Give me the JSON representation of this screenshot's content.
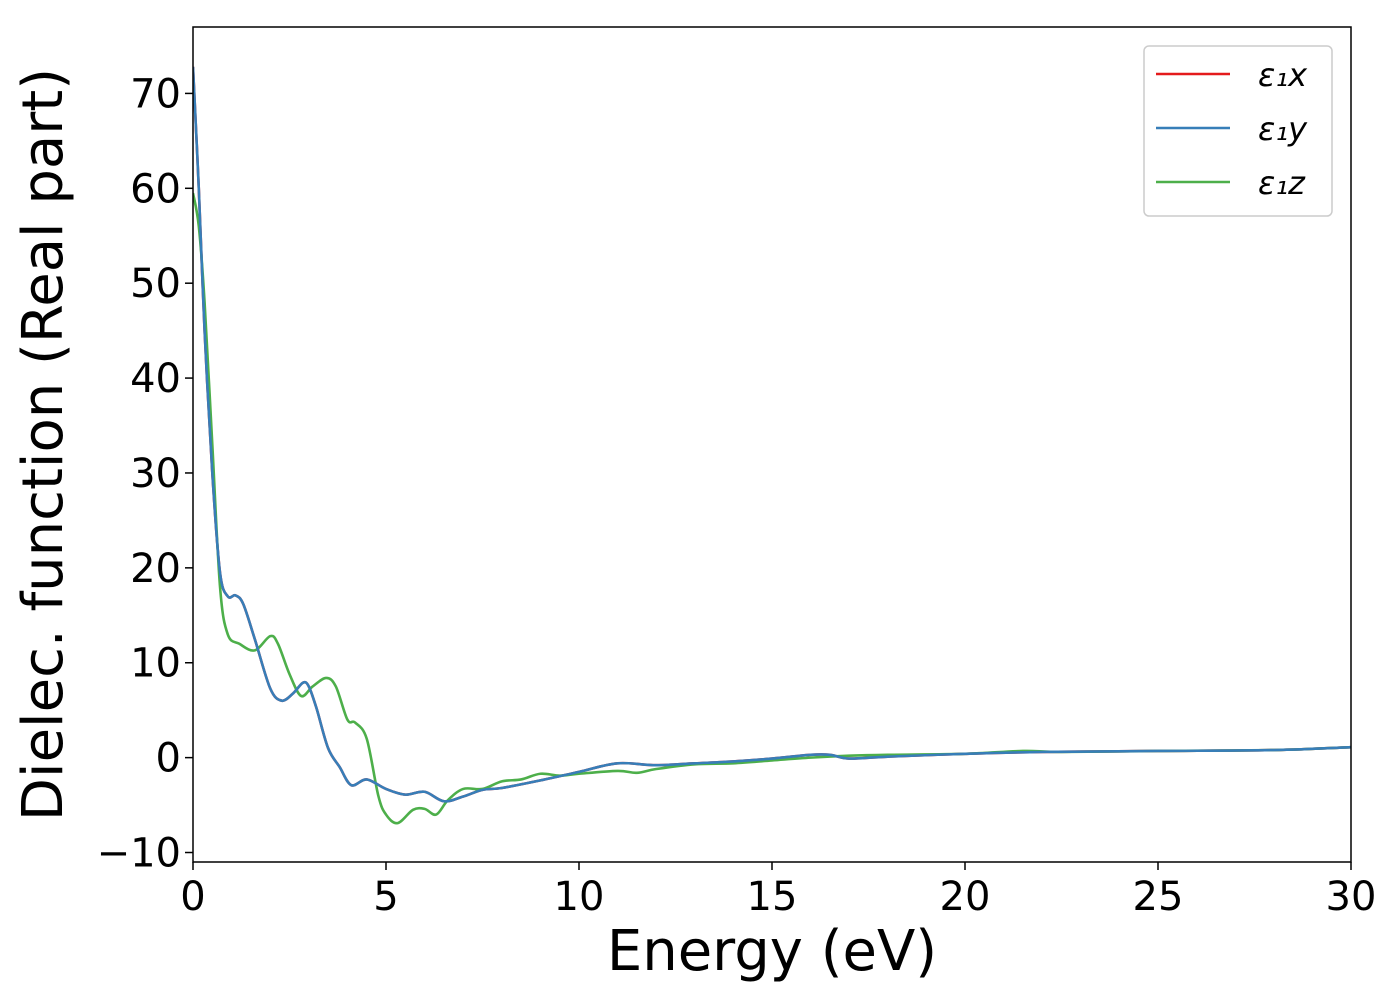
{
  "chart_data": {
    "type": "line",
    "title": "",
    "xlabel": "Energy (eV)",
    "ylabel": "Dielec. function (Real part)",
    "xlim": [
      0,
      30
    ],
    "ylim": [
      -11,
      77
    ],
    "xticks": [
      0,
      5,
      10,
      15,
      20,
      25,
      30
    ],
    "xtick_labels": [
      "0",
      "5",
      "10",
      "15",
      "20",
      "25",
      "30"
    ],
    "yticks": [
      -10,
      0,
      10,
      20,
      30,
      40,
      50,
      60,
      70
    ],
    "ytick_labels": [
      "−10",
      "0",
      "10",
      "20",
      "30",
      "40",
      "50",
      "60",
      "70"
    ],
    "grid": false,
    "legend_position": "top-right",
    "series": [
      {
        "name": "ε₁x",
        "color": "#e41a1c",
        "x": [
          0,
          0.15,
          0.3,
          0.5,
          0.7,
          0.9,
          1.1,
          1.3,
          1.6,
          2.0,
          2.3,
          2.6,
          2.85,
          3.0,
          3.2,
          3.5,
          3.8,
          4.1,
          4.5,
          5.0,
          5.5,
          6.0,
          6.5,
          7.0,
          7.5,
          8.0,
          9.0,
          10.0,
          11.0,
          12.0,
          13.0,
          14.0,
          15.0,
          16.0,
          16.5,
          17.0,
          18.0,
          20.0,
          22.0,
          25.0,
          28.0,
          30.0
        ],
        "y": [
          72.8,
          60,
          45,
          30,
          19.5,
          17,
          17.1,
          16.2,
          12.5,
          7.3,
          6.0,
          6.8,
          7.9,
          7.5,
          5.2,
          1.0,
          -1.0,
          -2.9,
          -2.3,
          -3.3,
          -3.9,
          -3.6,
          -4.6,
          -4.1,
          -3.4,
          -3.2,
          -2.4,
          -1.5,
          -0.6,
          -0.8,
          -0.6,
          -0.4,
          -0.1,
          0.3,
          0.3,
          -0.1,
          0.1,
          0.4,
          0.6,
          0.7,
          0.8,
          1.1
        ]
      },
      {
        "name": "ε₁y",
        "color": "#377eb8",
        "x": [
          0,
          0.15,
          0.3,
          0.5,
          0.7,
          0.9,
          1.1,
          1.3,
          1.6,
          2.0,
          2.3,
          2.6,
          2.85,
          3.0,
          3.2,
          3.5,
          3.8,
          4.1,
          4.5,
          5.0,
          5.5,
          6.0,
          6.5,
          7.0,
          7.5,
          8.0,
          9.0,
          10.0,
          11.0,
          12.0,
          13.0,
          14.0,
          15.0,
          16.0,
          16.5,
          17.0,
          18.0,
          20.0,
          22.0,
          25.0,
          28.0,
          30.0
        ],
        "y": [
          72.8,
          60,
          45,
          30,
          19.5,
          17,
          17.1,
          16.2,
          12.5,
          7.3,
          6.0,
          6.8,
          7.9,
          7.5,
          5.2,
          1.0,
          -1.0,
          -2.9,
          -2.3,
          -3.3,
          -3.9,
          -3.6,
          -4.6,
          -4.1,
          -3.4,
          -3.2,
          -2.4,
          -1.5,
          -0.6,
          -0.8,
          -0.6,
          -0.4,
          -0.1,
          0.3,
          0.3,
          -0.1,
          0.1,
          0.4,
          0.6,
          0.7,
          0.8,
          1.1
        ]
      },
      {
        "name": "ε₁z",
        "color": "#4daf4a",
        "x": [
          0,
          0.15,
          0.3,
          0.5,
          0.7,
          0.9,
          1.2,
          1.6,
          2.0,
          2.2,
          2.5,
          2.8,
          3.1,
          3.45,
          3.7,
          4.0,
          4.2,
          4.5,
          4.8,
          5.0,
          5.3,
          5.7,
          6.0,
          6.3,
          6.6,
          7.0,
          7.5,
          8.0,
          8.5,
          9.0,
          9.5,
          10.0,
          11.0,
          11.5,
          12.0,
          13.0,
          14.0,
          15.0,
          16.0,
          17.0,
          18.0,
          20.0,
          21.5,
          22.5,
          25.0,
          28.0,
          30.0
        ],
        "y": [
          59.5,
          56,
          48,
          33,
          18,
          13,
          12.0,
          11.3,
          12.8,
          12.0,
          8.8,
          6.5,
          7.5,
          8.4,
          7.5,
          4.0,
          3.7,
          2.0,
          -4.0,
          -6.0,
          -6.9,
          -5.5,
          -5.4,
          -6.0,
          -4.5,
          -3.3,
          -3.3,
          -2.5,
          -2.3,
          -1.7,
          -1.9,
          -1.7,
          -1.4,
          -1.6,
          -1.2,
          -0.7,
          -0.6,
          -0.3,
          0.0,
          0.2,
          0.3,
          0.4,
          0.7,
          0.6,
          0.7,
          0.8,
          1.1
        ]
      }
    ]
  }
}
